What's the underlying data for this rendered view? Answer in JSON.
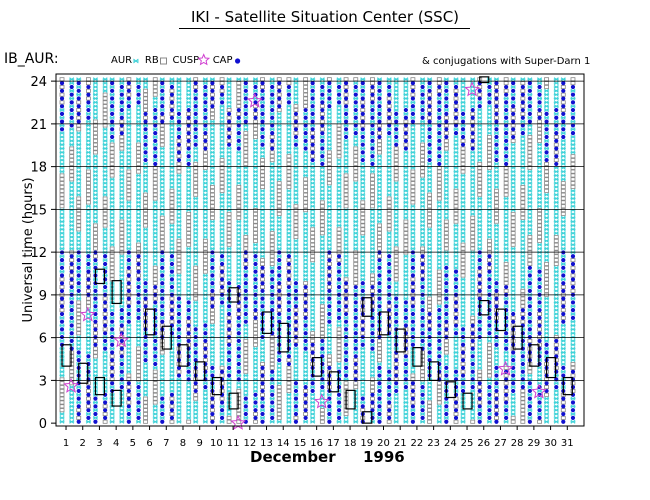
{
  "header": {
    "title": "IKI - Satellite Situation Center (SSC)"
  },
  "chart_data": {
    "type": "scatter",
    "title": "IKI - Satellite Situation Center (SSC)",
    "panel_label": "IB_AUR:",
    "annotation": "& conjugations with Super-Darn 1",
    "xlabel": "December",
    "xlabel_year": "1996",
    "ylabel": "Universal time (hours)",
    "xlim": [
      0.4,
      32.0
    ],
    "ylim": [
      -0.2,
      24.5
    ],
    "x_ticks": [
      1,
      2,
      3,
      4,
      5,
      6,
      7,
      8,
      9,
      10,
      11,
      12,
      13,
      14,
      15,
      16,
      17,
      18,
      19,
      20,
      21,
      22,
      23,
      24,
      25,
      26,
      27,
      28,
      29,
      30,
      31
    ],
    "y_ticks": [
      0,
      3,
      6,
      9,
      12,
      15,
      18,
      21,
      24
    ],
    "legend": [
      {
        "label": "AUR",
        "marker": "cross",
        "color": "#3fd2d8"
      },
      {
        "label": "RB",
        "marker": "square",
        "color": "#888888"
      },
      {
        "label": "CUSP",
        "marker": "star",
        "color": "#d040d0"
      },
      {
        "label": "CAP",
        "marker": "dot",
        "color": "#1010d0"
      }
    ],
    "colors": {
      "aur": "#3fd2d8",
      "rb": "#888888",
      "star": "#d040d0",
      "cap": "#1010d0",
      "box": "#000000"
    },
    "series_note": "Each day has two orbit columns spanning 0-24 h UT with alternating AUR/RB/CAP passes.",
    "cap_segments": [
      {
        "day": 1,
        "ranges": [
          [
            5,
            12
          ],
          [
            20.5,
            24
          ]
        ]
      },
      {
        "day": 2,
        "ranges": [
          [
            0,
            5
          ],
          [
            9,
            12
          ],
          [
            21,
            24
          ]
        ]
      },
      {
        "day": 3,
        "ranges": [
          [
            5,
            12
          ],
          [
            0,
            2
          ]
        ]
      },
      {
        "day": 4,
        "ranges": [
          [
            2,
            8
          ],
          [
            20,
            24
          ]
        ]
      },
      {
        "day": 5,
        "ranges": [
          [
            0,
            3
          ],
          [
            7,
            12
          ],
          [
            22,
            24
          ]
        ]
      },
      {
        "day": 6,
        "ranges": [
          [
            4,
            10
          ],
          [
            18,
            22
          ]
        ]
      },
      {
        "day": 7,
        "ranges": [
          [
            0,
            2
          ],
          [
            6,
            12
          ],
          [
            21,
            24
          ]
        ]
      },
      {
        "day": 8,
        "ranges": [
          [
            3,
            9
          ],
          [
            18,
            22
          ]
        ]
      },
      {
        "day": 9,
        "ranges": [
          [
            2,
            7
          ],
          [
            19,
            24
          ]
        ]
      },
      {
        "day": 10,
        "ranges": [
          [
            0,
            4
          ],
          [
            8,
            12
          ],
          [
            22,
            24
          ]
        ]
      },
      {
        "day": 11,
        "ranges": [
          [
            3,
            10
          ],
          [
            19,
            22
          ]
        ]
      },
      {
        "day": 12,
        "ranges": [
          [
            0,
            2
          ],
          [
            7,
            12
          ],
          [
            21,
            24
          ]
        ]
      },
      {
        "day": 13,
        "ranges": [
          [
            0,
            4
          ],
          [
            6,
            11
          ],
          [
            19,
            24
          ]
        ]
      },
      {
        "day": 14,
        "ranges": [
          [
            4,
            12
          ],
          [
            22,
            24
          ]
        ]
      },
      {
        "day": 15,
        "ranges": [
          [
            0,
            3
          ],
          [
            5,
            10
          ],
          [
            19,
            22
          ]
        ]
      },
      {
        "day": 16,
        "ranges": [
          [
            2,
            6
          ],
          [
            18,
            24
          ]
        ]
      },
      {
        "day": 17,
        "ranges": [
          [
            0,
            4
          ],
          [
            7,
            12
          ],
          [
            22,
            24
          ]
        ]
      },
      {
        "day": 18,
        "ranges": [
          [
            3,
            10
          ],
          [
            20,
            24
          ]
        ]
      },
      {
        "day": 19,
        "ranges": [
          [
            0,
            2
          ],
          [
            5,
            10
          ],
          [
            18,
            24
          ]
        ]
      },
      {
        "day": 20,
        "ranges": [
          [
            0,
            4
          ],
          [
            6,
            12
          ],
          [
            20,
            24
          ]
        ]
      },
      {
        "day": 21,
        "ranges": [
          [
            2,
            9
          ],
          [
            19,
            22
          ]
        ]
      },
      {
        "day": 22,
        "ranges": [
          [
            0,
            3
          ],
          [
            5,
            12
          ],
          [
            21,
            24
          ]
        ]
      },
      {
        "day": 23,
        "ranges": [
          [
            3,
            8
          ],
          [
            18,
            24
          ]
        ]
      },
      {
        "day": 24,
        "ranges": [
          [
            0,
            4
          ],
          [
            6,
            11
          ],
          [
            20,
            24
          ]
        ]
      },
      {
        "day": 25,
        "ranges": [
          [
            2,
            7
          ],
          [
            19,
            22
          ]
        ]
      },
      {
        "day": 26,
        "ranges": [
          [
            0,
            3
          ],
          [
            6,
            12
          ],
          [
            22,
            24
          ]
        ]
      },
      {
        "day": 27,
        "ranges": [
          [
            0,
            4
          ],
          [
            5,
            10
          ],
          [
            18,
            24
          ]
        ]
      },
      {
        "day": 28,
        "ranges": [
          [
            2,
            8
          ],
          [
            20,
            24
          ]
        ]
      },
      {
        "day": 29,
        "ranges": [
          [
            0,
            3
          ],
          [
            4,
            11
          ],
          [
            21,
            24
          ]
        ]
      },
      {
        "day": 30,
        "ranges": [
          [
            2,
            6
          ],
          [
            18,
            22
          ]
        ]
      },
      {
        "day": 31,
        "ranges": [
          [
            0,
            4
          ],
          [
            7,
            12
          ],
          [
            20,
            24
          ]
        ]
      }
    ],
    "conjunction_boxes": [
      {
        "day": 1,
        "t0": 4.0,
        "t1": 5.5
      },
      {
        "day": 2,
        "t0": 2.8,
        "t1": 4.2
      },
      {
        "day": 3,
        "t0": 2.0,
        "t1": 3.2
      },
      {
        "day": 3,
        "t0": 9.8,
        "t1": 10.8
      },
      {
        "day": 4,
        "t0": 8.4,
        "t1": 10.0
      },
      {
        "day": 4,
        "t0": 1.2,
        "t1": 2.3
      },
      {
        "day": 6,
        "t0": 6.2,
        "t1": 8.0
      },
      {
        "day": 7,
        "t0": 5.2,
        "t1": 6.8
      },
      {
        "day": 8,
        "t0": 4.0,
        "t1": 5.5
      },
      {
        "day": 9,
        "t0": 3.0,
        "t1": 4.3
      },
      {
        "day": 10,
        "t0": 2.0,
        "t1": 3.2
      },
      {
        "day": 11,
        "t0": 8.5,
        "t1": 9.5
      },
      {
        "day": 11,
        "t0": 1.0,
        "t1": 2.1
      },
      {
        "day": 13,
        "t0": 6.3,
        "t1": 7.8
      },
      {
        "day": 14,
        "t0": 5.0,
        "t1": 7.0
      },
      {
        "day": 16,
        "t0": 3.3,
        "t1": 4.6
      },
      {
        "day": 17,
        "t0": 2.2,
        "t1": 3.6
      },
      {
        "day": 18,
        "t0": 1.0,
        "t1": 2.3
      },
      {
        "day": 19,
        "t0": 7.5,
        "t1": 8.8
      },
      {
        "day": 19,
        "t0": 0.0,
        "t1": 0.8
      },
      {
        "day": 20,
        "t0": 6.2,
        "t1": 7.8
      },
      {
        "day": 21,
        "t0": 5.0,
        "t1": 6.6
      },
      {
        "day": 22,
        "t0": 4.0,
        "t1": 5.3
      },
      {
        "day": 23,
        "t0": 3.0,
        "t1": 4.3
      },
      {
        "day": 24,
        "t0": 1.8,
        "t1": 2.9
      },
      {
        "day": 25,
        "t0": 1.0,
        "t1": 2.1
      },
      {
        "day": 26,
        "t0": 7.6,
        "t1": 8.6
      },
      {
        "day": 26,
        "t0": 23.9,
        "t1": 24.3
      },
      {
        "day": 27,
        "t0": 6.5,
        "t1": 8.0
      },
      {
        "day": 28,
        "t0": 5.2,
        "t1": 6.8
      },
      {
        "day": 29,
        "t0": 4.0,
        "t1": 5.5
      },
      {
        "day": 30,
        "t0": 3.2,
        "t1": 4.6
      },
      {
        "day": 31,
        "t0": 2.0,
        "t1": 3.2
      }
    ],
    "stars": [
      {
        "day": 1,
        "t": 2.6
      },
      {
        "day": 2,
        "t": 7.6
      },
      {
        "day": 4,
        "t": 5.8
      },
      {
        "day": 11,
        "t": 0.0
      },
      {
        "day": 12,
        "t": 22.6
      },
      {
        "day": 16,
        "t": 1.5
      },
      {
        "day": 25,
        "t": 23.4
      },
      {
        "day": 27,
        "t": 3.8
      },
      {
        "day": 29,
        "t": 2.2
      }
    ]
  }
}
